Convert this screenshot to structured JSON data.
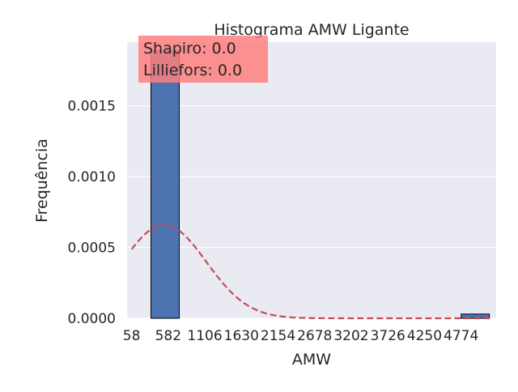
{
  "chart_data": {
    "type": "bar",
    "title": "Histograma AMW Ligante",
    "xlabel": "AMW",
    "ylabel": "Frequência",
    "x_range": [
      -7,
      5276
    ],
    "ylim": [
      0,
      0.00195
    ],
    "x_ticks": [
      58,
      582,
      1106,
      1630,
      2154,
      2678,
      3202,
      3726,
      4250,
      4774
    ],
    "x_tick_labels": [
      "58",
      "582",
      "1106",
      "1630",
      "2154",
      "2678",
      "3202",
      "3726",
      "4250",
      "4774"
    ],
    "y_ticks": [
      0.0,
      0.0005,
      0.001,
      0.0015
    ],
    "y_tick_labels": [
      "0.0000",
      "0.0005",
      "0.0010",
      "0.0015"
    ],
    "bars": [
      {
        "x0": 335,
        "x1": 740,
        "value": 0.00189
      },
      {
        "x0": 4774,
        "x1": 5179,
        "value": 3e-05
      }
    ],
    "fit_curve": {
      "style": "dashed",
      "color": "#c44e52",
      "mean": 525,
      "sd": 600,
      "peak": 0.00066,
      "x_range": [
        58,
        5224
      ]
    },
    "annotations": {
      "shapiro": "Shapiro: 0.0",
      "lilliefors": "Lilliefors: 0.0"
    },
    "colors": {
      "bar": "#4c72b0",
      "plot_bg": "#eaeaf2",
      "stats_box": "#ff7f7f"
    },
    "grid": true
  }
}
